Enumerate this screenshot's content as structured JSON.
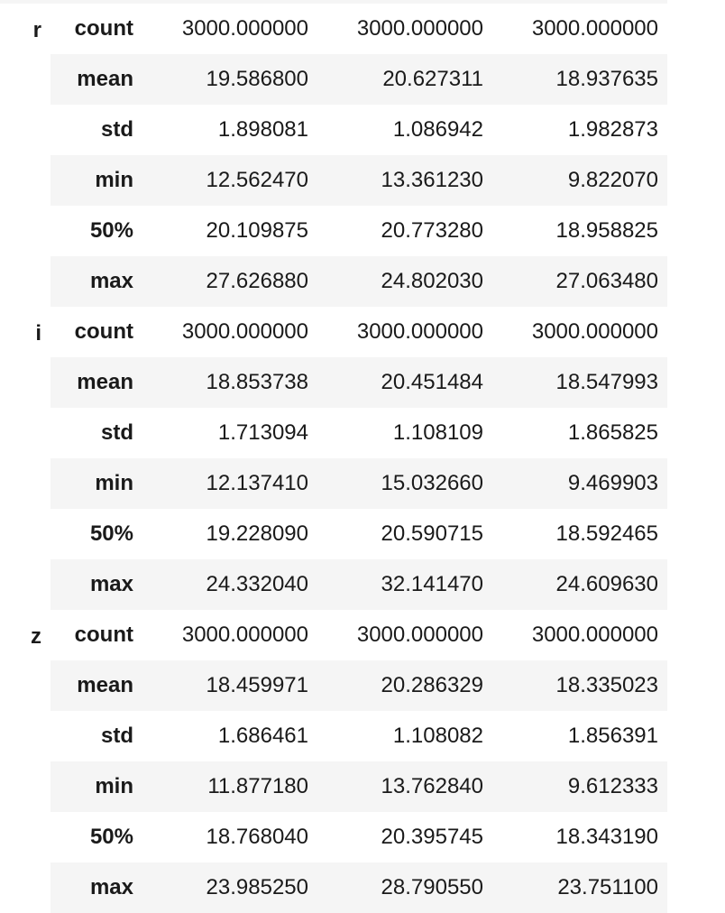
{
  "table": {
    "groups": [
      {
        "label": "r",
        "rows": [
          {
            "stat": "count",
            "values": [
              "3000.000000",
              "3000.000000",
              "3000.000000"
            ]
          },
          {
            "stat": "mean",
            "values": [
              "19.586800",
              "20.627311",
              "18.937635"
            ]
          },
          {
            "stat": "std",
            "values": [
              "1.898081",
              "1.086942",
              "1.982873"
            ]
          },
          {
            "stat": "min",
            "values": [
              "12.562470",
              "13.361230",
              "9.822070"
            ]
          },
          {
            "stat": "50%",
            "values": [
              "20.109875",
              "20.773280",
              "18.958825"
            ]
          },
          {
            "stat": "max",
            "values": [
              "27.626880",
              "24.802030",
              "27.063480"
            ]
          }
        ]
      },
      {
        "label": "i",
        "rows": [
          {
            "stat": "count",
            "values": [
              "3000.000000",
              "3000.000000",
              "3000.000000"
            ]
          },
          {
            "stat": "mean",
            "values": [
              "18.853738",
              "20.451484",
              "18.547993"
            ]
          },
          {
            "stat": "std",
            "values": [
              "1.713094",
              "1.108109",
              "1.865825"
            ]
          },
          {
            "stat": "min",
            "values": [
              "12.137410",
              "15.032660",
              "9.469903"
            ]
          },
          {
            "stat": "50%",
            "values": [
              "19.228090",
              "20.590715",
              "18.592465"
            ]
          },
          {
            "stat": "max",
            "values": [
              "24.332040",
              "32.141470",
              "24.609630"
            ]
          }
        ]
      },
      {
        "label": "z",
        "rows": [
          {
            "stat": "count",
            "values": [
              "3000.000000",
              "3000.000000",
              "3000.000000"
            ]
          },
          {
            "stat": "mean",
            "values": [
              "18.459971",
              "20.286329",
              "18.335023"
            ]
          },
          {
            "stat": "std",
            "values": [
              "1.686461",
              "1.108082",
              "1.856391"
            ]
          },
          {
            "stat": "min",
            "values": [
              "11.877180",
              "13.762840",
              "9.612333"
            ]
          },
          {
            "stat": "50%",
            "values": [
              "18.768040",
              "20.395745",
              "18.343190"
            ]
          },
          {
            "stat": "max",
            "values": [
              "23.985250",
              "28.790550",
              "23.751100"
            ]
          }
        ]
      }
    ],
    "colors": {
      "stripe": "#f5f5f5",
      "text": "#1a1a1a",
      "background": "#ffffff"
    }
  }
}
